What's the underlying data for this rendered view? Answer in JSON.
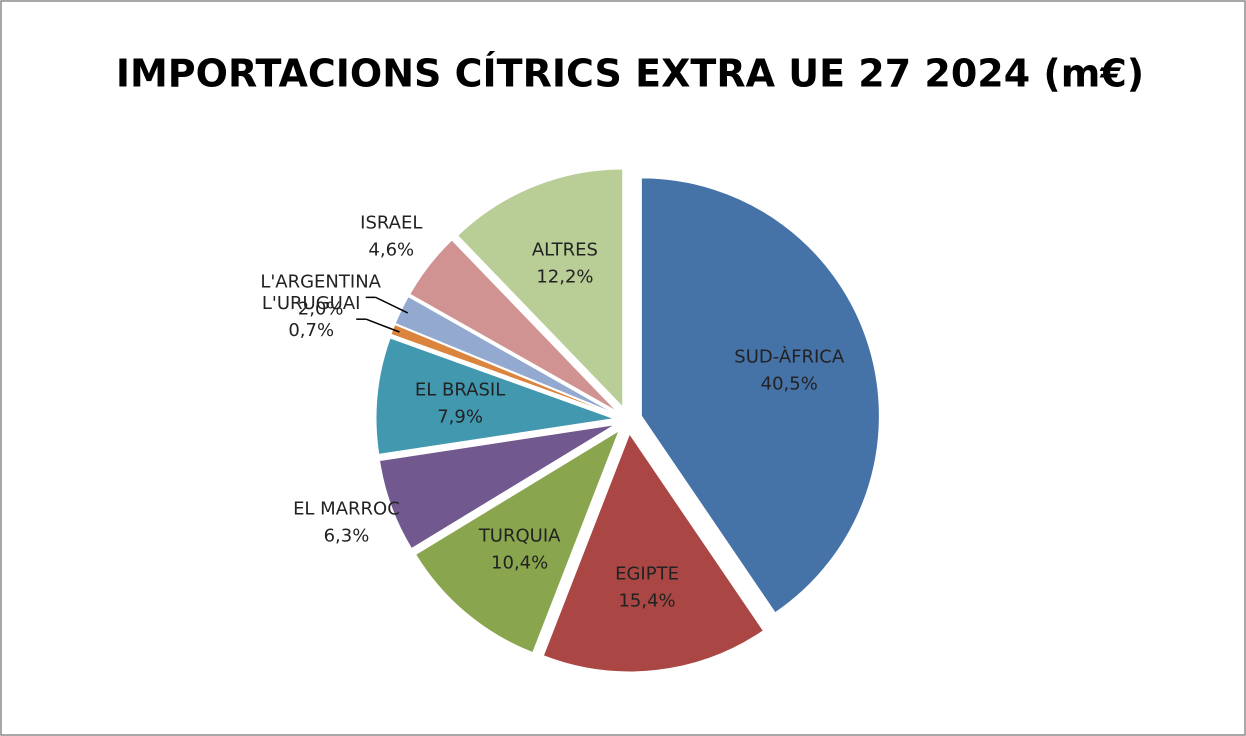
{
  "chart_data": {
    "type": "pie",
    "title": "IMPORTACIONS CÍTRICS EXTRA UE 27 2024 (m€)",
    "categories": [
      "SUD-ÀFRICA",
      "EGIPTE",
      "TURQUIA",
      "EL MARROC",
      "EL BRASIL",
      "L'URUGUAI",
      "L'ARGENTINA",
      "ISRAEL",
      "ALTRES"
    ],
    "values": [
      40.5,
      15.4,
      10.4,
      6.3,
      7.9,
      0.7,
      2.0,
      4.6,
      12.2
    ],
    "value_labels": [
      "40,5%",
      "15,4%",
      "10,4%",
      "6,3%",
      "7,9%",
      "0,7%",
      "2,0%",
      "4,6%",
      "12,2%"
    ],
    "colors": [
      "#4572a7",
      "#aa4643",
      "#89a54e",
      "#71588f",
      "#4198af",
      "#db843d",
      "#93a9cf",
      "#d19392",
      "#b9cd96"
    ]
  }
}
